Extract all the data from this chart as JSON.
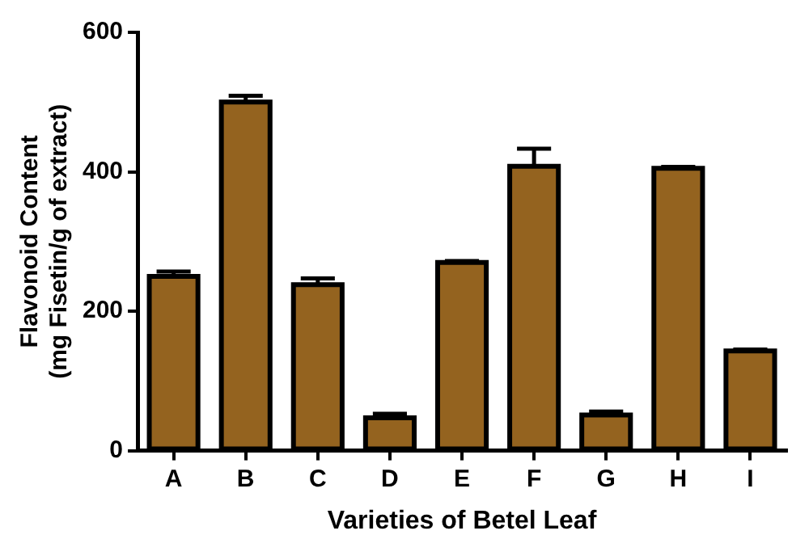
{
  "chart_data": {
    "type": "bar",
    "xlabel": "Varieties of Betel Leaf",
    "ylabel": "Flavonoid Content\n(mg Fisetin/g of extract)",
    "categories": [
      "A",
      "B",
      "C",
      "D",
      "E",
      "F",
      "G",
      "H",
      "I"
    ],
    "values": [
      250,
      500,
      238,
      47,
      270,
      408,
      51,
      405,
      143
    ],
    "errors": [
      7,
      9,
      9,
      6,
      2,
      25,
      5,
      2,
      2
    ],
    "color": "#94631f",
    "ylim": [
      0,
      600
    ],
    "yticks": [
      0,
      200,
      400,
      600
    ],
    "grid": false,
    "legend": false
  }
}
